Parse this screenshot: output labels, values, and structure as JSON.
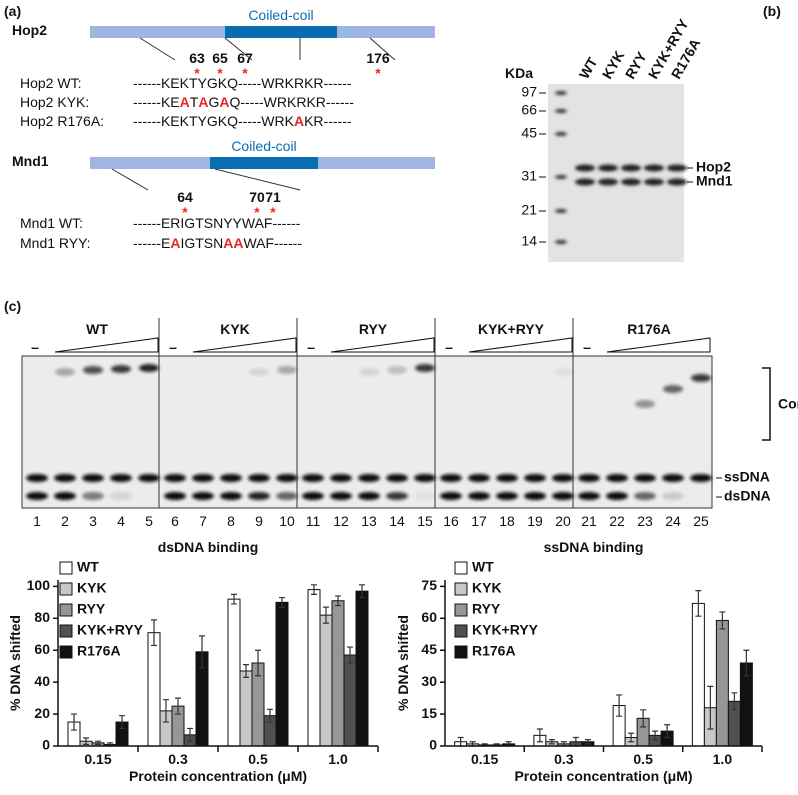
{
  "panel_a": {
    "label": "(a)",
    "site_marker": "*",
    "proteins": [
      {
        "name": "Hop2",
        "domain": "Coiled-coil",
        "positions": [
          63,
          65,
          67,
          176
        ],
        "rows": [
          {
            "label": "Hop2 WT:",
            "parts": [
              {
                "text": "------KEKTYGKQ-----WRKRKR------",
                "red": false
              }
            ]
          },
          {
            "label": "Hop2 KYK:",
            "parts": [
              {
                "text": "------KE",
                "red": false
              },
              {
                "text": "A",
                "red": true
              },
              {
                "text": "T",
                "red": false
              },
              {
                "text": "A",
                "red": true
              },
              {
                "text": "G",
                "red": false
              },
              {
                "text": "A",
                "red": true
              },
              {
                "text": "Q-----WRKRKR------",
                "red": false
              }
            ]
          },
          {
            "label": "Hop2 R176A:",
            "parts": [
              {
                "text": "------KEKTYGKQ-----WRK",
                "red": false
              },
              {
                "text": "A",
                "red": true
              },
              {
                "text": "KR------",
                "red": false
              }
            ]
          }
        ]
      },
      {
        "name": "Mnd1",
        "domain": "Coiled-coil",
        "positions": [
          64,
          70,
          71
        ],
        "rows": [
          {
            "label": "Mnd1 WT:",
            "parts": [
              {
                "text": "------ERIGTSNYYWAF------",
                "red": false
              }
            ]
          },
          {
            "label": "Mnd1 RYY:",
            "parts": [
              {
                "text": "------E",
                "red": false
              },
              {
                "text": "A",
                "red": true
              },
              {
                "text": "IGTSN",
                "red": false
              },
              {
                "text": "AA",
                "red": true
              },
              {
                "text": "WAF------",
                "red": false
              }
            ]
          }
        ]
      }
    ]
  },
  "panel_b": {
    "label": "(b)",
    "unit": "KDa",
    "lanes": [
      "WT",
      "KYK",
      "RYY",
      "KYK+RYY",
      "R176A"
    ],
    "markers": [
      97,
      66,
      45,
      31,
      21,
      14
    ],
    "bands": [
      "Hop2",
      "Mnd1"
    ]
  },
  "panel_c": {
    "label": "(c)",
    "groups": [
      "WT",
      "KYK",
      "RYY",
      "KYK+RYY",
      "R176A"
    ],
    "no_protein": "–",
    "lane_numbers": [
      1,
      2,
      3,
      4,
      5,
      6,
      7,
      8,
      9,
      10,
      11,
      12,
      13,
      14,
      15,
      16,
      17,
      18,
      19,
      20,
      21,
      22,
      23,
      24,
      25
    ],
    "bands": [
      "ssDNA",
      "dsDNA"
    ],
    "complex": "Complex"
  },
  "chart_data": [
    {
      "type": "bar",
      "title": "dsDNA binding",
      "xlabel": "Protein concentration (μM)",
      "ylabel": "% DNA shifted",
      "categories": [
        "0.15",
        "0.3",
        "0.5",
        "1.0"
      ],
      "ylim": [
        0,
        104
      ],
      "yticks": [
        0,
        20,
        40,
        60,
        80,
        100
      ],
      "series": [
        {
          "name": "WT",
          "color": "#ffffff",
          "values": [
            15,
            71,
            92,
            98
          ],
          "errors": [
            5,
            8,
            3,
            3
          ]
        },
        {
          "name": "KYK",
          "color": "#c8c8c8",
          "values": [
            3,
            22,
            47,
            82
          ],
          "errors": [
            2,
            7,
            4,
            5
          ]
        },
        {
          "name": "RYY",
          "color": "#969696",
          "values": [
            2,
            25,
            52,
            91
          ],
          "errors": [
            1,
            5,
            8,
            3
          ]
        },
        {
          "name": "KYK+RYY",
          "color": "#505050",
          "values": [
            1,
            7,
            19,
            57
          ],
          "errors": [
            1,
            4,
            4,
            5
          ]
        },
        {
          "name": "R176A",
          "color": "#111111",
          "values": [
            15,
            59,
            90,
            97
          ],
          "errors": [
            4,
            10,
            3,
            4
          ]
        }
      ]
    },
    {
      "type": "bar",
      "title": "ssDNA binding",
      "xlabel": "Protein concentration (μM)",
      "ylabel": "% DNA shifted",
      "categories": [
        "0.15",
        "0.3",
        "0.5",
        "1.0"
      ],
      "ylim": [
        0,
        78
      ],
      "yticks": [
        0,
        15,
        30,
        45,
        60,
        75
      ],
      "series": [
        {
          "name": "WT",
          "color": "#ffffff",
          "values": [
            2,
            5,
            19,
            67
          ],
          "errors": [
            2,
            3,
            5,
            6
          ]
        },
        {
          "name": "KYK",
          "color": "#c8c8c8",
          "values": [
            1,
            2,
            4,
            18
          ],
          "errors": [
            1,
            1,
            2,
            10
          ]
        },
        {
          "name": "RYY",
          "color": "#969696",
          "values": [
            0.5,
            1,
            13,
            59
          ],
          "errors": [
            0.5,
            1,
            4,
            4
          ]
        },
        {
          "name": "KYK+RYY",
          "color": "#505050",
          "values": [
            0.5,
            2,
            5,
            21
          ],
          "errors": [
            0.5,
            2,
            2,
            4
          ]
        },
        {
          "name": "R176A",
          "color": "#111111",
          "values": [
            1,
            2,
            7,
            39
          ],
          "errors": [
            1,
            1,
            3,
            6
          ]
        }
      ]
    }
  ]
}
